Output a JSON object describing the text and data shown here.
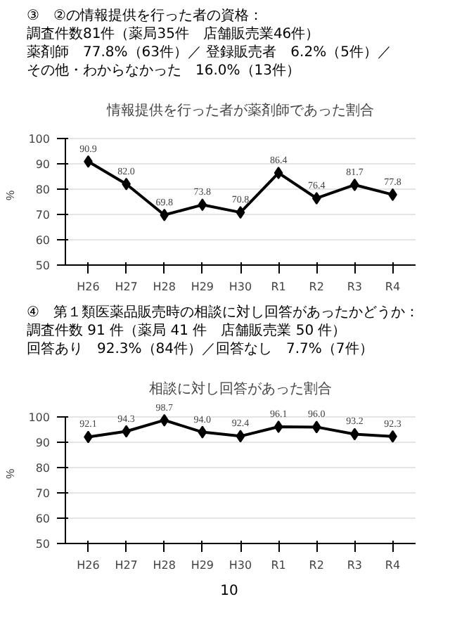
{
  "chart_data": [
    {
      "type": "line",
      "title": "情報提供を行った者が薬剤師であった割合",
      "ylabel": "%",
      "annotations": [
        "③　②の情報提供を行った者の資格：",
        "調査件数81件（薬局35件　店舗販売業46件）",
        "薬剤師　77.8%（63件）／ 登録販売者　6.2%（5件）／",
        "その他・わからなかった　16.0%（13件）"
      ],
      "categories": [
        "H26",
        "H27",
        "H28",
        "H29",
        "H30",
        "R1",
        "R2",
        "R3",
        "R4"
      ],
      "series": [
        {
          "color": "#000000",
          "values": [
            90.9,
            82.0,
            69.8,
            73.8,
            70.8,
            86.4,
            76.4,
            81.7,
            77.8
          ],
          "value_labels": [
            "90.9",
            "82.0",
            "69.8",
            "73.8",
            "70.8",
            "86.4",
            "76.4",
            "81.7",
            "77.8"
          ]
        }
      ],
      "ylim": [
        50,
        100
      ],
      "yticks": [
        50,
        60,
        70,
        80,
        90,
        100
      ],
      "grid": "y",
      "marker": "diamond",
      "line_style": "solid"
    },
    {
      "type": "line",
      "title": "相談に対し回答があった割合",
      "ylabel": "%",
      "annotations": [
        "④　第１類医薬品販売時の相談に対し回答があったかどうか：",
        "調査件数 91 件（薬局 41 件　店舗販売業 50 件）",
        "回答あり　92.3%（84件）／回答なし　7.7%（7件）",
        "10"
      ],
      "categories": [
        "H26",
        "H27",
        "H28",
        "H29",
        "H30",
        "R1",
        "R2",
        "R3",
        "R4"
      ],
      "series": [
        {
          "color": "#000000",
          "values": [
            92.1,
            94.3,
            98.7,
            94.0,
            92.4,
            96.1,
            96.0,
            93.2,
            92.3
          ],
          "value_labels": [
            "92.1",
            "94.3",
            "98.7",
            "94.0",
            "92.4",
            "96.1",
            "96.0",
            "93.2",
            "92.3"
          ]
        }
      ],
      "ylim": [
        50,
        100
      ],
      "yticks": [
        50,
        60,
        70,
        80,
        90,
        100
      ],
      "grid": "y",
      "marker": "diamond",
      "line_style": "solid"
    }
  ]
}
